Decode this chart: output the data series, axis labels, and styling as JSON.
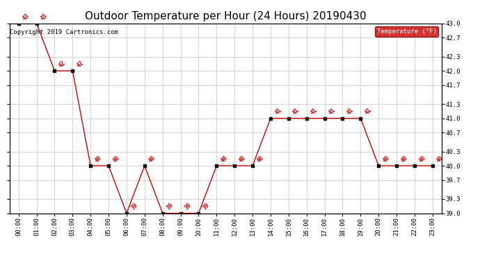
{
  "title": "Outdoor Temperature per Hour (24 Hours) 20190430",
  "hours": [
    "00:00",
    "01:00",
    "02:00",
    "03:00",
    "04:00",
    "05:00",
    "06:00",
    "07:00",
    "08:00",
    "09:00",
    "10:00",
    "11:00",
    "12:00",
    "13:00",
    "14:00",
    "15:00",
    "16:00",
    "17:00",
    "18:00",
    "19:00",
    "20:00",
    "21:00",
    "22:00",
    "23:00"
  ],
  "temperatures": [
    43,
    43,
    42,
    42,
    40,
    40,
    39,
    40,
    39,
    39,
    39,
    40,
    40,
    40,
    41,
    41,
    41,
    41,
    41,
    41,
    40,
    40,
    40,
    40
  ],
  "ylim": [
    39.0,
    43.0
  ],
  "yticks": [
    39.0,
    39.3,
    39.7,
    40.0,
    40.3,
    40.7,
    41.0,
    41.3,
    41.7,
    42.0,
    42.3,
    42.7,
    43.0
  ],
  "line_color": "#cc0000",
  "marker_color": "#000000",
  "label_color": "#cc0000",
  "copyright_text": "Copyright 2019 Cartronics.com",
  "legend_label": "Temperature (°F)",
  "legend_bg": "#cc0000",
  "legend_fg": "#ffffff",
  "background_color": "#ffffff",
  "grid_color": "#aaaaaa",
  "title_fontsize": 11,
  "label_fontsize": 6.5,
  "tick_fontsize": 6.5,
  "copyright_fontsize": 6.5,
  "annot_fontsize": 6.0
}
